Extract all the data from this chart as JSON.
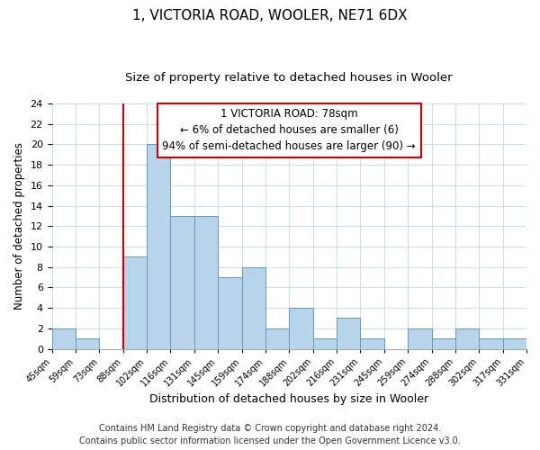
{
  "title": "1, VICTORIA ROAD, WOOLER, NE71 6DX",
  "subtitle": "Size of property relative to detached houses in Wooler",
  "xlabel": "Distribution of detached houses by size in Wooler",
  "ylabel": "Number of detached properties",
  "bin_labels": [
    "45sqm",
    "59sqm",
    "73sqm",
    "88sqm",
    "102sqm",
    "116sqm",
    "131sqm",
    "145sqm",
    "159sqm",
    "174sqm",
    "188sqm",
    "202sqm",
    "216sqm",
    "231sqm",
    "245sqm",
    "259sqm",
    "274sqm",
    "288sqm",
    "302sqm",
    "317sqm",
    "331sqm"
  ],
  "bar_values": [
    2,
    1,
    0,
    9,
    20,
    13,
    13,
    7,
    8,
    2,
    4,
    1,
    3,
    1,
    0,
    2,
    1,
    2,
    1,
    1
  ],
  "bar_color": "#b8d4ea",
  "bar_edge_color": "#6699bb",
  "red_line_x": 3,
  "annotation_title": "1 VICTORIA ROAD: 78sqm",
  "annotation_line1": "← 6% of detached houses are smaller (6)",
  "annotation_line2": "94% of semi-detached houses are larger (90) →",
  "annotation_box_color": "#ffffff",
  "annotation_box_edge": "#cc0000",
  "red_line_color": "#cc0000",
  "ylim": [
    0,
    24
  ],
  "yticks": [
    0,
    2,
    4,
    6,
    8,
    10,
    12,
    14,
    16,
    18,
    20,
    22,
    24
  ],
  "grid_color": "#ccddee",
  "footnote1": "Contains HM Land Registry data © Crown copyright and database right 2024.",
  "footnote2": "Contains public sector information licensed under the Open Government Licence v3.0.",
  "title_fontsize": 11,
  "subtitle_fontsize": 9.5,
  "xlabel_fontsize": 9,
  "ylabel_fontsize": 8.5,
  "footnote_fontsize": 7
}
